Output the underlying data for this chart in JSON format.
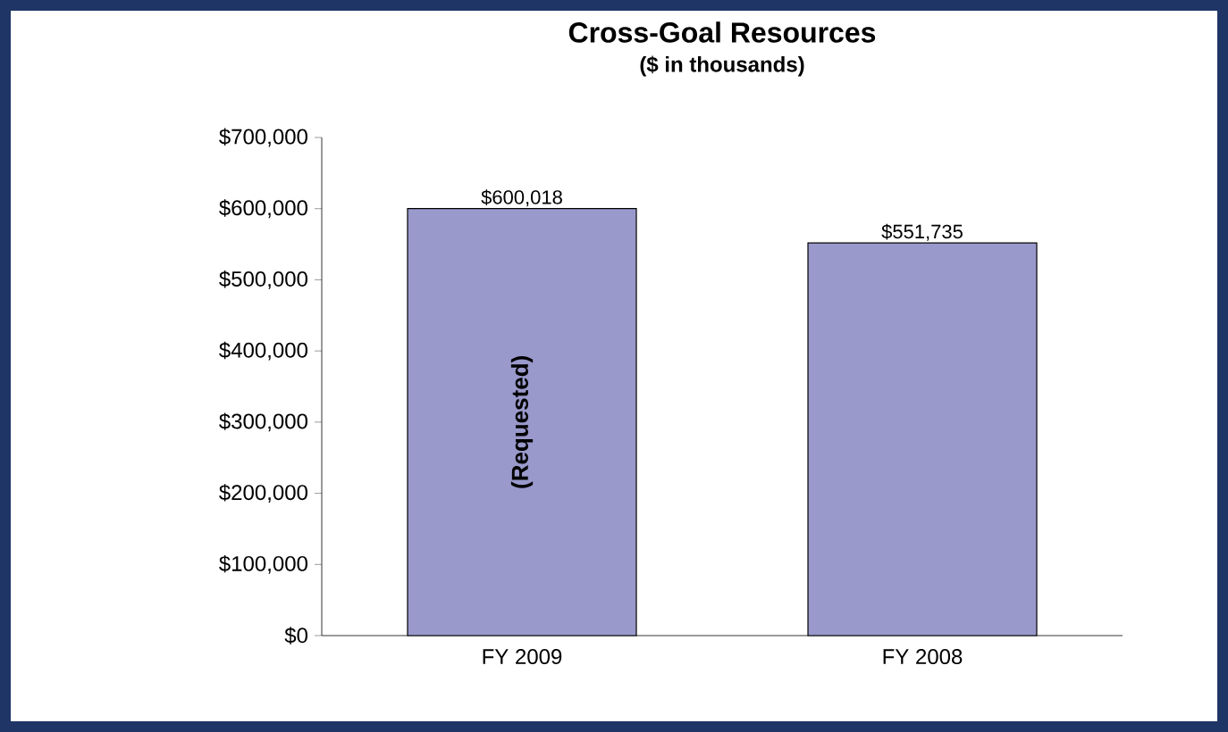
{
  "chart_data": {
    "type": "bar",
    "title": "Cross-Goal Resources",
    "subtitle": "($ in thousands)",
    "categories": [
      "FY 2009",
      "FY 2008"
    ],
    "values": [
      600018,
      551735
    ],
    "value_labels": [
      "$600,018",
      "$551,735"
    ],
    "color": "#9999cc",
    "ylim": [
      0,
      700000
    ],
    "yticks": [
      {
        "value": 0,
        "label": "$0"
      },
      {
        "value": 100000,
        "label": "$100,000"
      },
      {
        "value": 200000,
        "label": "$200,000"
      },
      {
        "value": 300000,
        "label": "$300,000"
      },
      {
        "value": 400000,
        "label": "$400,000"
      },
      {
        "value": 500000,
        "label": "$500,000"
      },
      {
        "value": 600000,
        "label": "$600,000"
      },
      {
        "value": 700000,
        "label": "$700,000"
      }
    ],
    "annotations": [
      "(Requested)"
    ],
    "grid": false
  }
}
